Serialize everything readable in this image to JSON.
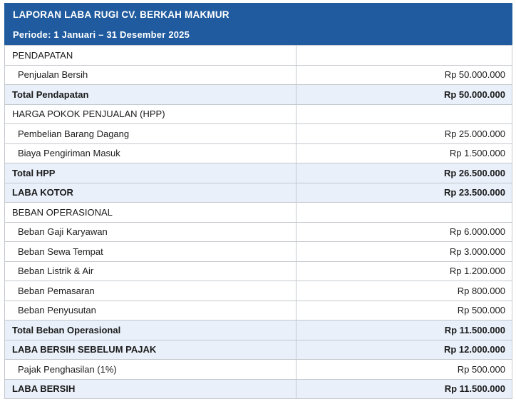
{
  "header": {
    "title": "LAPORAN LABA RUGI CV. BERKAH MAKMUR",
    "periode": "Periode: 1 Januari – 31 Desember 2025"
  },
  "colors": {
    "header_bg": "#1f5b9e",
    "highlight_bg": "#e9f0fa",
    "border": "#c3c8cd"
  },
  "table": {
    "rows": [
      {
        "type": "section",
        "label": "PENDAPATAN",
        "value": ""
      },
      {
        "type": "detail",
        "label": "Penjualan Bersih",
        "value": "Rp 50.000.000"
      },
      {
        "type": "total",
        "label": "Total Pendapatan",
        "value": "Rp 50.000.000"
      },
      {
        "type": "section",
        "label": "HARGA POKOK PENJUALAN (HPP)",
        "value": ""
      },
      {
        "type": "detail",
        "label": "Pembelian Barang Dagang",
        "value": "Rp 25.000.000"
      },
      {
        "type": "detail",
        "label": "Biaya Pengiriman Masuk",
        "value": "Rp 1.500.000"
      },
      {
        "type": "total",
        "label": "Total HPP",
        "value": "Rp 26.500.000"
      },
      {
        "type": "total",
        "label": "LABA KOTOR",
        "value": "Rp 23.500.000"
      },
      {
        "type": "section",
        "label": "BEBAN OPERASIONAL",
        "value": ""
      },
      {
        "type": "detail",
        "label": "Beban Gaji Karyawan",
        "value": "Rp 6.000.000"
      },
      {
        "type": "detail",
        "label": "Beban Sewa Tempat",
        "value": "Rp 3.000.000"
      },
      {
        "type": "detail",
        "label": "Beban Listrik & Air",
        "value": "Rp 1.200.000"
      },
      {
        "type": "detail",
        "label": "Beban Pemasaran",
        "value": "Rp 800.000"
      },
      {
        "type": "detail",
        "label": "Beban Penyusutan",
        "value": "Rp 500.000"
      },
      {
        "type": "total",
        "label": "Total Beban Operasional",
        "value": "Rp 11.500.000"
      },
      {
        "type": "total",
        "label": "LABA BERSIH SEBELUM PAJAK",
        "value": "Rp 12.000.000"
      },
      {
        "type": "detail",
        "label": "Pajak Penghasilan (1%)",
        "value": "Rp 500.000"
      },
      {
        "type": "total",
        "label": "LABA BERSIH",
        "value": "Rp 11.500.000"
      }
    ]
  }
}
